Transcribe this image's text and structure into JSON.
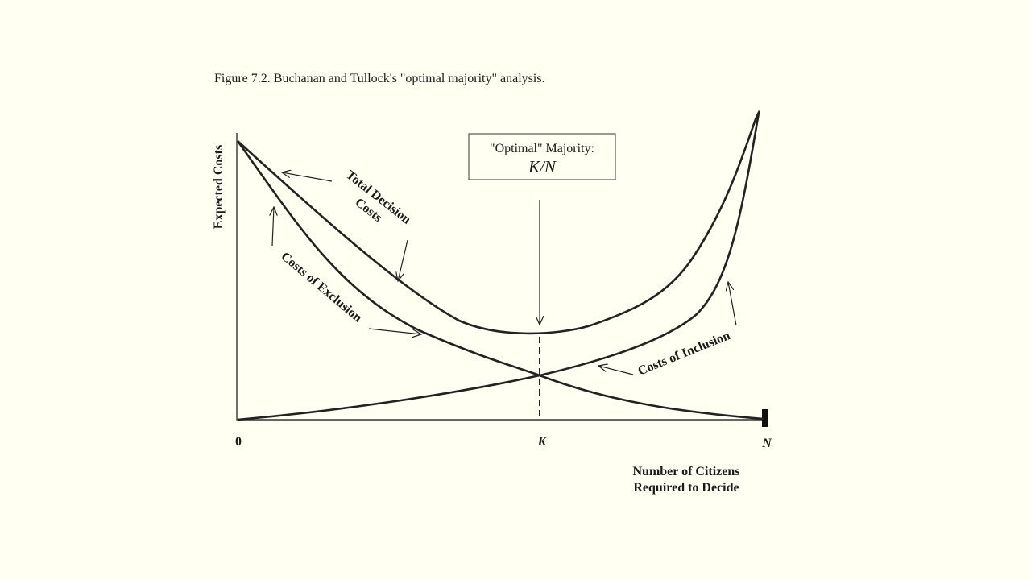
{
  "figure": {
    "caption": "Figure 7.2. Buchanan and Tullock's \"optimal majority\" analysis."
  },
  "axes": {
    "y_label": "Expected Costs",
    "x_label_line1": "Number of Citizens",
    "x_label_line2": "Required to Decide",
    "tick_origin": "0",
    "tick_k": "K",
    "tick_n": "N"
  },
  "callout": {
    "title": "\"Optimal\" Majority:",
    "subtitle": "K/N"
  },
  "curve_labels": {
    "total_line1": "Total Decision",
    "total_line2": "Costs",
    "exclusion": "Costs of Exclusion",
    "inclusion": "Costs of Inclusion"
  }
}
